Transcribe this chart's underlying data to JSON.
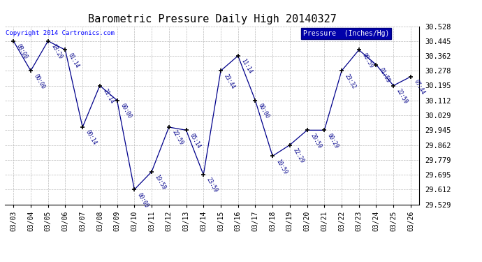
{
  "title": "Barometric Pressure Daily High 20140327",
  "copyright_text": "Copyright 2014 Cartronics.com",
  "legend_label": "Pressure  (Inches/Hg)",
  "background_color": "#ffffff",
  "plot_bg_color": "#ffffff",
  "grid_color": "#bbbbbb",
  "line_color": "#00008b",
  "marker_color": "#000000",
  "dates": [
    "03/03",
    "03/04",
    "03/05",
    "03/06",
    "03/07",
    "03/08",
    "03/09",
    "03/10",
    "03/11",
    "03/12",
    "03/13",
    "03/14",
    "03/15",
    "03/16",
    "03/17",
    "03/18",
    "03/19",
    "03/20",
    "03/21",
    "03/22",
    "03/23",
    "03/24",
    "03/25",
    "03/26"
  ],
  "values": [
    30.445,
    30.278,
    30.445,
    30.395,
    29.962,
    30.195,
    30.112,
    29.612,
    29.712,
    29.962,
    29.945,
    29.695,
    30.278,
    30.362,
    30.112,
    29.8,
    29.862,
    29.945,
    29.945,
    30.278,
    30.395,
    30.312,
    30.195,
    30.245
  ],
  "time_labels": [
    "08:00",
    "00:00",
    "18:29",
    "01:14",
    "00:14",
    "21:14",
    "00:00",
    "00:00",
    "19:59",
    "22:59",
    "05:14",
    "23:59",
    "23:44",
    "11:14",
    "00:00",
    "10:59",
    "22:29",
    "20:59",
    "00:29",
    "23:32",
    "08:59",
    "01:59",
    "22:59",
    "07:44"
  ],
  "ylim_min": 29.529,
  "ylim_max": 30.528,
  "yticks": [
    29.529,
    29.612,
    29.695,
    29.779,
    29.862,
    29.945,
    30.029,
    30.112,
    30.195,
    30.278,
    30.362,
    30.445,
    30.528
  ]
}
